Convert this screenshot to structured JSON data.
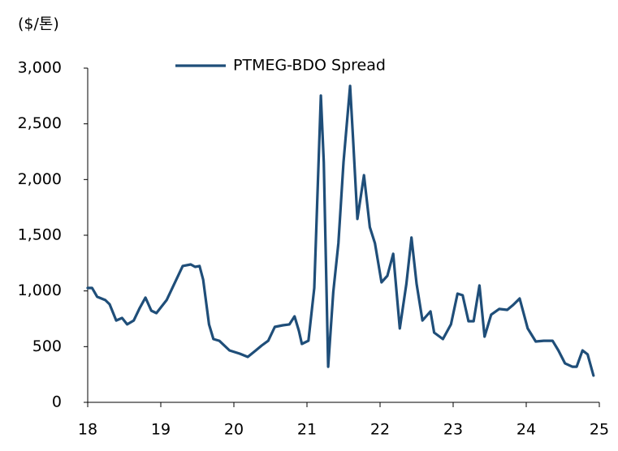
{
  "chart_data": {
    "type": "line",
    "y_axis_label": "($/톤)",
    "xlim": [
      18,
      25
    ],
    "xticks": [
      18,
      19,
      20,
      21,
      22,
      23,
      24,
      25
    ],
    "ylim": [
      0,
      3000
    ],
    "yticks": [
      0,
      500,
      {
        "value": 1000,
        "label": "1,000"
      },
      {
        "value": 1500,
        "label": "1,500"
      },
      {
        "value": 2000,
        "label": "2,000"
      },
      {
        "value": 2500,
        "label": "2,500"
      },
      {
        "value": 3000,
        "label": "3,000"
      }
    ],
    "legend": "top",
    "series": [
      {
        "name": "PTMEG-BDO Spread",
        "color": "#1f4e79",
        "x": [
          18.0,
          18.06,
          18.13,
          18.24,
          18.3,
          18.39,
          18.47,
          18.54,
          18.63,
          18.71,
          18.79,
          18.87,
          18.94,
          19.08,
          19.3,
          19.41,
          19.47,
          19.53,
          19.58,
          19.66,
          19.72,
          19.8,
          19.94,
          20.08,
          20.19,
          20.3,
          20.38,
          20.47,
          20.56,
          20.67,
          20.76,
          20.83,
          20.89,
          20.93,
          21.02,
          21.1,
          21.19,
          21.23,
          21.29,
          21.36,
          21.43,
          21.5,
          21.59,
          21.63,
          21.69,
          21.78,
          21.86,
          21.93,
          22.02,
          22.1,
          22.18,
          22.27,
          22.36,
          22.43,
          22.5,
          22.58,
          22.63,
          22.69,
          22.74,
          22.86,
          22.97,
          23.06,
          23.13,
          23.21,
          23.28,
          23.36,
          23.43,
          23.52,
          23.63,
          23.74,
          23.82,
          23.91,
          24.02,
          24.13,
          24.24,
          24.36,
          24.44,
          24.53,
          24.63,
          24.69,
          24.77,
          24.84,
          24.92
        ],
        "values": [
          1027,
          1027,
          947,
          918,
          880,
          735,
          757,
          700,
          735,
          845,
          940,
          823,
          801,
          918,
          1224,
          1238,
          1216,
          1224,
          1100,
          700,
          568,
          553,
          466,
          437,
          408,
          466,
          510,
          553,
          677,
          692,
          700,
          772,
          641,
          524,
          553,
          1027,
          2753,
          2156,
          320,
          990,
          1428,
          2156,
          2840,
          2374,
          1646,
          2039,
          1573,
          1428,
          1078,
          1136,
          1333,
          663,
          1063,
          1479,
          1063,
          735,
          772,
          816,
          626,
          568,
          700,
          976,
          961,
          728,
          728,
          1049,
          590,
          787,
          838,
          830,
          874,
          932,
          663,
          546,
          553,
          553,
          466,
          350,
          320,
          320,
          466,
          430,
          240
        ]
      }
    ]
  }
}
